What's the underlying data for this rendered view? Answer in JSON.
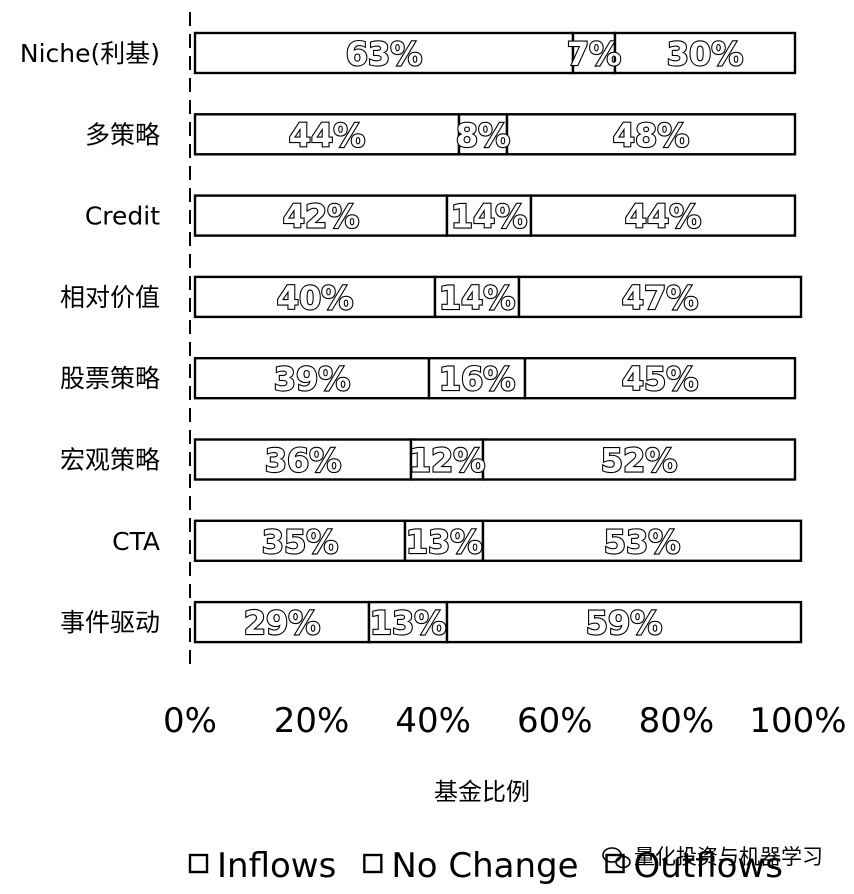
{
  "chart_data": {
    "type": "bar",
    "orientation": "horizontal",
    "stacked": true,
    "categories": [
      "Niche(利基)",
      "多策略",
      "Credit",
      "相对价值",
      "股票策略",
      "宏观策略",
      "CTA",
      "事件驱动"
    ],
    "series": [
      {
        "name": "Inflows",
        "values": [
          63,
          44,
          42,
          40,
          39,
          36,
          35,
          29
        ],
        "labels": [
          "63%",
          "44%",
          "42%",
          "40%",
          "39%",
          "36%",
          "35%",
          "29%"
        ]
      },
      {
        "name": "No Change",
        "values": [
          7,
          8,
          14,
          14,
          16,
          12,
          13,
          13
        ],
        "labels": [
          "7%",
          "8%",
          "14%",
          "14%",
          "16%",
          "12%",
          "13%",
          "13%"
        ]
      },
      {
        "name": "Outflows",
        "values": [
          30,
          48,
          44,
          47,
          45,
          52,
          53,
          59
        ],
        "labels": [
          "30%",
          "48%",
          "44%",
          "47%",
          "45%",
          "52%",
          "53%",
          "59%"
        ]
      }
    ],
    "xlim": [
      0,
      100
    ],
    "xticks": [
      "0%",
      "20%",
      "40%",
      "60%",
      "80%",
      "100%"
    ],
    "xlabel": "基金比例",
    "ylabel": "",
    "title": "",
    "grid": false,
    "legend_position": "bottom",
    "colors": {
      "fill": "#ffffff",
      "stroke": "#000000"
    }
  },
  "watermark": {
    "text": "量化投资与机器学习",
    "icon": "wechat-icon"
  }
}
